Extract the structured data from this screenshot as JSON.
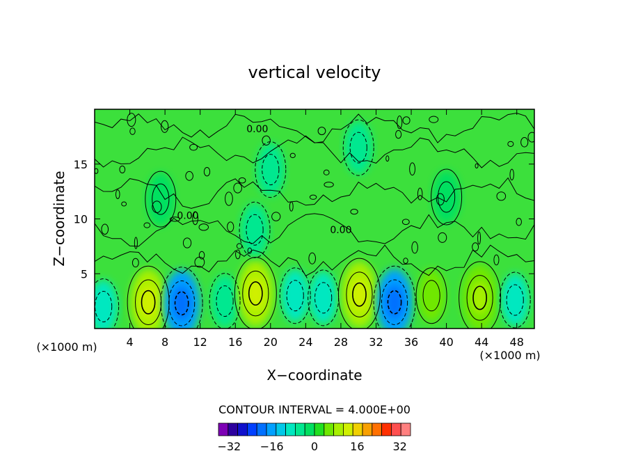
{
  "chart_data": {
    "type": "heatmap",
    "title": "vertical velocity",
    "xlabel": "X−coordinate",
    "ylabel": "Z−coordinate",
    "x_unit_left": "(×1000 m)",
    "x_unit_right": "(×1000 m)",
    "xlim": [
      0,
      50
    ],
    "ylim": [
      0,
      20
    ],
    "x_ticks": [
      4,
      8,
      12,
      16,
      20,
      24,
      28,
      32,
      36,
      40,
      44,
      48
    ],
    "y_ticks": [
      5,
      10,
      15
    ],
    "contour_interval_text": "CONTOUR INTERVAL = 4.000E+00",
    "contour_labels": [
      {
        "text": "0.00",
        "x": 18.5,
        "y": 17.9
      },
      {
        "text": "0.00",
        "x": 28.0,
        "y": 8.7
      },
      {
        "text": "0.00",
        "x": 10.6,
        "y": 10.0
      }
    ],
    "cells": [
      {
        "x": 1.0,
        "y": 2.0,
        "v": -6
      },
      {
        "x": 6.1,
        "y": 2.4,
        "v": 14
      },
      {
        "x": 9.9,
        "y": 2.3,
        "v": -14
      },
      {
        "x": 14.8,
        "y": 2.5,
        "v": -3
      },
      {
        "x": 18.3,
        "y": 3.2,
        "v": 14
      },
      {
        "x": 22.8,
        "y": 3.0,
        "v": -8
      },
      {
        "x": 26.0,
        "y": 2.8,
        "v": -5
      },
      {
        "x": 30.1,
        "y": 3.1,
        "v": 15
      },
      {
        "x": 34.1,
        "y": 2.4,
        "v": -14
      },
      {
        "x": 38.3,
        "y": 3.0,
        "v": 8
      },
      {
        "x": 43.8,
        "y": 2.8,
        "v": 11
      },
      {
        "x": 47.8,
        "y": 2.6,
        "v": -5
      },
      {
        "x": 18.2,
        "y": 9.0,
        "v": -2
      },
      {
        "x": 20.0,
        "y": 14.5,
        "v": -2
      },
      {
        "x": 7.5,
        "y": 11.8,
        "v": 2
      },
      {
        "x": 40.0,
        "y": 12.0,
        "v": 1
      },
      {
        "x": 30.0,
        "y": 16.5,
        "v": -1
      }
    ],
    "colorbar": {
      "min": -36,
      "max": 36,
      "step": 4,
      "tick_labels": [
        "−32",
        "−16",
        "0",
        "16",
        "32"
      ],
      "tick_values": [
        -32,
        -16,
        0,
        16,
        32
      ],
      "colors": [
        "#7d00b5",
        "#2d009e",
        "#1010cc",
        "#0040ff",
        "#0070ff",
        "#00a0ff",
        "#00c8e8",
        "#00e8c0",
        "#00e890",
        "#00e060",
        "#20e020",
        "#70e800",
        "#a8f000",
        "#d0f000",
        "#f0d000",
        "#f8a000",
        "#ff7000",
        "#ff3000",
        "#ff5050",
        "#ff8080"
      ]
    }
  }
}
